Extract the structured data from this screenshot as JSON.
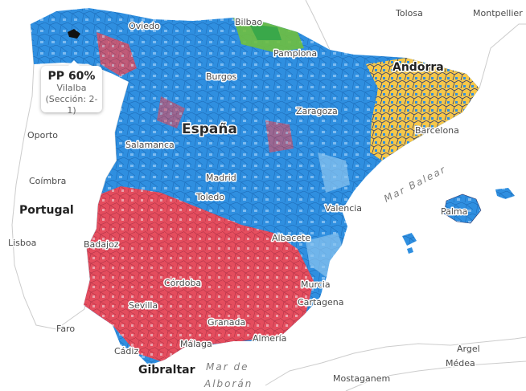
{
  "tooltip": {
    "title": "PP 60%",
    "municipality": "Vilalba",
    "section": "(Sección: 2-1)"
  },
  "colors": {
    "pp": "#2f8fe0",
    "pp_light": "#8cc4f0",
    "psoe": "#ef4a57",
    "psoe_light": "#f5a3a8",
    "junts": "#f6c74a",
    "bildu": "#6fbf3f",
    "pnv": "#3aa84a",
    "outline": "#2c3a70",
    "border": "#cccccc"
  },
  "labels": {
    "countries": [
      "España",
      "Portugal",
      "Andorra",
      "Gibraltar"
    ],
    "cities": [
      "Bilbao",
      "Oviedo",
      "Pamplona",
      "Burgos",
      "Zaragoza",
      "Barcelona",
      "Salamanca",
      "Madrid",
      "Toledo",
      "Valencia",
      "Palma",
      "Badajoz",
      "Albacete",
      "Córdoba",
      "Murcia",
      "Cartagena",
      "Sevilla",
      "Granada",
      "Almería",
      "Málaga",
      "Cádiz",
      "Oporto",
      "Coímbra",
      "Lisboa",
      "Faro",
      "Tolosa",
      "Montpellier",
      "Argel",
      "Médea",
      "Mostaganem"
    ],
    "seas": [
      "Mar Balear",
      "Mar de",
      "Alborán"
    ]
  }
}
